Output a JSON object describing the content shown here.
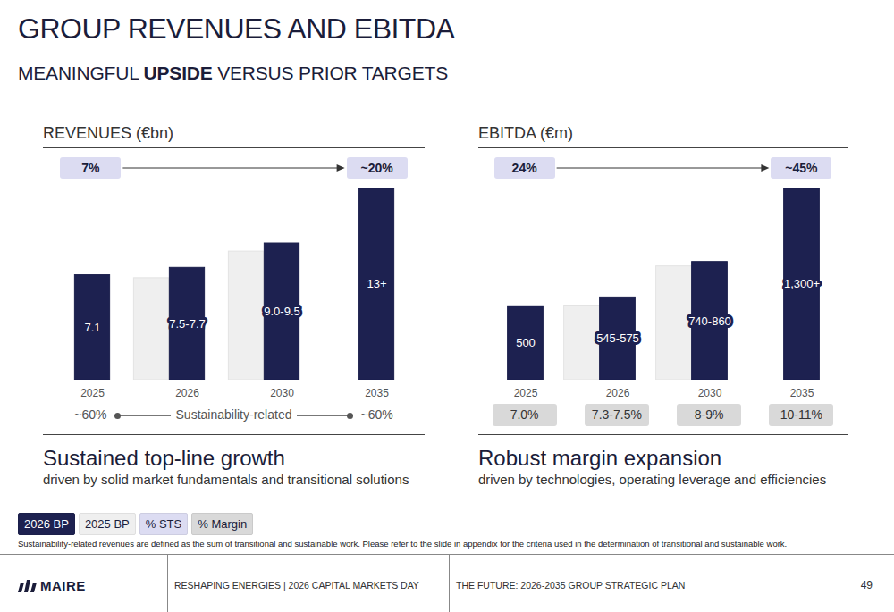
{
  "title": "GROUP REVENUES AND EBITDA",
  "subtitle": "MEANINGFUL UPSIDE VERSUS PRIOR TARGETS",
  "subtitle_emphasis": "UPSIDE",
  "legend": "bottom",
  "note": "Sustainability-related revenues are defined as the sum of transitional and sustainable work. Please refer to the slide in appendix for the criteria used in the determination of transitional and sustainable work.",
  "footer": {
    "brand": "MAIRE",
    "event": "RESHAPING ENERGIES | 2026 CAPITAL MARKETS DAY",
    "section": "THE FUTURE: 2026-2035 GROUP STRATEGIC PLAN",
    "page": 49
  },
  "chart_data": [
    {
      "type": "bar",
      "title": "REVENUES (€bn)",
      "categories": [
        "2025",
        "2026",
        "2030",
        "2035"
      ],
      "series": [
        {
          "name": "2025 BP",
          "color": "#efefef",
          "values": [
            null,
            6.9,
            8.7,
            null
          ]
        },
        {
          "name": "2026 BP",
          "color": "#1d2150",
          "values": [
            7.1,
            7.6,
            9.25,
            13
          ],
          "value_labels": [
            "7.1",
            "7.5-7.7",
            "9.0-9.5",
            "13+"
          ],
          "data_labels": true
        }
      ],
      "ylim": [
        0,
        13
      ],
      "yticks": [],
      "tick_labels": "x",
      "share_arrow": {
        "name": "% STS",
        "color": "#dcdcf2",
        "categories": [
          "2025",
          "2035"
        ],
        "values": [
          7,
          20
        ],
        "value_labels": [
          "7%",
          "~20%"
        ]
      },
      "sustainability": {
        "name": "Sustainability-related",
        "categories": [
          "2025",
          "2035"
        ],
        "values": [
          60,
          60
        ],
        "value_labels": [
          "~60%",
          "~60%"
        ]
      },
      "caption": "Sustained top-line growth",
      "caption_detail": "driven by solid market fundamentals and transitional solutions"
    },
    {
      "type": "bar",
      "title": "EBITDA (€m)",
      "categories": [
        "2025",
        "2026",
        "2030",
        "2035"
      ],
      "series": [
        {
          "name": "2025 BP",
          "color": "#efefef",
          "values": [
            null,
            505,
            770,
            null
          ]
        },
        {
          "name": "2026 BP",
          "color": "#1d2150",
          "values": [
            500,
            560,
            800,
            1300
          ],
          "value_labels": [
            "500",
            "545-575",
            "740-860",
            "1,300+"
          ],
          "data_labels": true
        }
      ],
      "ylim": [
        0,
        1300
      ],
      "yticks": [],
      "tick_labels": "x",
      "share_arrow": {
        "name": "% STS",
        "color": "#dcdcf2",
        "categories": [
          "2025",
          "2035"
        ],
        "values": [
          24,
          45
        ],
        "value_labels": [
          "24%",
          "~45%"
        ]
      },
      "margin": {
        "name": "% Margin",
        "color": "#d9d9d9",
        "categories": [
          "2025",
          "2026",
          "2030",
          "2035"
        ],
        "values": [
          7.0,
          7.4,
          8.5,
          10.5
        ],
        "value_labels": [
          "7.0%",
          "7.3-7.5%",
          "8-9%",
          "10-11%"
        ]
      },
      "caption": "Robust margin expansion",
      "caption_detail": "driven by technologies, operating leverage and efficiencies"
    }
  ]
}
